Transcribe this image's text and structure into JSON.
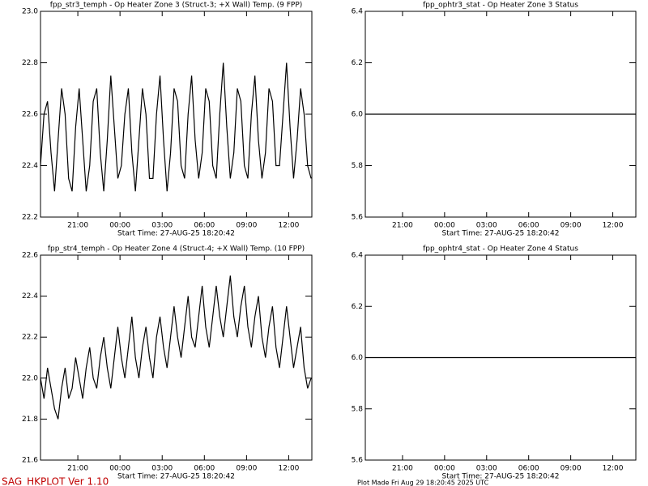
{
  "chart_data": [
    {
      "type": "line",
      "title": "fpp_str3_temph - Op Heater Zone 3 (Struct-3; +X Wall) Temp. (9 FPP)",
      "xlabel": "Start Time: 27-AUG-25  18:20:42",
      "x": [
        0,
        0.25,
        0.5,
        0.75,
        1,
        1.25,
        1.5,
        1.75,
        2,
        2.25,
        2.5,
        2.75,
        3,
        3.25,
        3.5,
        3.75,
        4,
        4.25,
        4.5,
        4.75,
        5,
        5.25,
        5.5,
        5.75,
        6,
        6.25,
        6.5,
        6.75,
        7,
        7.25,
        7.5,
        7.75,
        8,
        8.25,
        8.5,
        8.75,
        9,
        9.25,
        9.5,
        9.75,
        10,
        10.25,
        10.5,
        10.75,
        11,
        11.25,
        11.5,
        11.75,
        12,
        12.25,
        12.5,
        12.75,
        13,
        13.25,
        13.5,
        13.75,
        14,
        14.25,
        14.5,
        14.75,
        15,
        15.25,
        15.5,
        15.75,
        16,
        16.25,
        16.5,
        16.75,
        17,
        17.25,
        17.5,
        17.75,
        18,
        18.25,
        18.5,
        18.75,
        19,
        19.25
      ],
      "series": [
        {
          "color": "#000000",
          "values": [
            22.4,
            22.6,
            22.65,
            22.45,
            22.3,
            22.5,
            22.7,
            22.6,
            22.35,
            22.3,
            22.55,
            22.7,
            22.5,
            22.3,
            22.4,
            22.65,
            22.7,
            22.45,
            22.3,
            22.5,
            22.75,
            22.55,
            22.35,
            22.4,
            22.6,
            22.7,
            22.45,
            22.3,
            22.5,
            22.7,
            22.6,
            22.35,
            22.35,
            22.6,
            22.75,
            22.5,
            22.3,
            22.45,
            22.7,
            22.65,
            22.4,
            22.35,
            22.6,
            22.75,
            22.5,
            22.35,
            22.45,
            22.7,
            22.65,
            22.4,
            22.35,
            22.6,
            22.8,
            22.55,
            22.35,
            22.45,
            22.7,
            22.65,
            22.4,
            22.35,
            22.6,
            22.75,
            22.5,
            22.35,
            22.45,
            22.7,
            22.65,
            22.4,
            22.4,
            22.6,
            22.8,
            22.55,
            22.35,
            22.5,
            22.7,
            22.6,
            22.4,
            22.35
          ]
        }
      ],
      "xlim": [
        0,
        19.3
      ],
      "xticks": [
        {
          "value": 2.655,
          "label": "21:00"
        },
        {
          "value": 5.655,
          "label": "00:00"
        },
        {
          "value": 8.655,
          "label": "03:00"
        },
        {
          "value": 11.655,
          "label": "06:00"
        },
        {
          "value": 14.655,
          "label": "09:00"
        },
        {
          "value": 17.655,
          "label": "12:00"
        }
      ],
      "ylim": [
        22.2,
        23.0
      ],
      "yticks": [
        22.2,
        22.4,
        22.6,
        22.8,
        {
          "value": 23.0,
          "label": "23.0"
        }
      ],
      "grid": false
    },
    {
      "type": "line",
      "title": "fpp_ophtr3_stat - Op Heater Zone 3 Status",
      "xlabel": "Start Time: 27-AUG-25  18:20:42",
      "x": [
        0,
        19.3
      ],
      "series": [
        {
          "color": "#000000",
          "values": [
            6.0,
            6.0
          ]
        }
      ],
      "xlim": [
        0,
        19.3
      ],
      "xticks": [
        {
          "value": 2.655,
          "label": "21:00"
        },
        {
          "value": 5.655,
          "label": "00:00"
        },
        {
          "value": 8.655,
          "label": "03:00"
        },
        {
          "value": 11.655,
          "label": "06:00"
        },
        {
          "value": 14.655,
          "label": "09:00"
        },
        {
          "value": 17.655,
          "label": "12:00"
        }
      ],
      "ylim": [
        5.6,
        6.4
      ],
      "yticks": [
        5.6,
        5.8,
        {
          "value": 6.0,
          "label": "6.0"
        },
        6.2,
        6.4
      ],
      "grid": false
    },
    {
      "type": "line",
      "title": "fpp_str4_temph - Op Heater Zone 4 (Struct-4; +X Wall) Temp. (10 FPP)",
      "xlabel": "Start Time: 27-AUG-25  18:20:42",
      "x": [
        0,
        0.25,
        0.5,
        0.75,
        1,
        1.25,
        1.5,
        1.75,
        2,
        2.25,
        2.5,
        2.75,
        3,
        3.25,
        3.5,
        3.75,
        4,
        4.25,
        4.5,
        4.75,
        5,
        5.25,
        5.5,
        5.75,
        6,
        6.25,
        6.5,
        6.75,
        7,
        7.25,
        7.5,
        7.75,
        8,
        8.25,
        8.5,
        8.75,
        9,
        9.25,
        9.5,
        9.75,
        10,
        10.25,
        10.5,
        10.75,
        11,
        11.25,
        11.5,
        11.75,
        12,
        12.25,
        12.5,
        12.75,
        13,
        13.25,
        13.5,
        13.75,
        14,
        14.25,
        14.5,
        14.75,
        15,
        15.25,
        15.5,
        15.75,
        16,
        16.25,
        16.5,
        16.75,
        17,
        17.25,
        17.5,
        17.75,
        18,
        18.25,
        18.5,
        18.75,
        19,
        19.25
      ],
      "series": [
        {
          "color": "#000000",
          "values": [
            22.0,
            21.9,
            22.05,
            21.95,
            21.85,
            21.8,
            21.95,
            22.05,
            21.9,
            21.95,
            22.1,
            22.0,
            21.9,
            22.05,
            22.15,
            22.0,
            21.95,
            22.1,
            22.2,
            22.05,
            21.95,
            22.1,
            22.25,
            22.1,
            22.0,
            22.15,
            22.3,
            22.1,
            22.0,
            22.15,
            22.25,
            22.1,
            22.0,
            22.2,
            22.3,
            22.15,
            22.05,
            22.2,
            22.35,
            22.2,
            22.1,
            22.25,
            22.4,
            22.2,
            22.15,
            22.3,
            22.45,
            22.25,
            22.15,
            22.3,
            22.45,
            22.3,
            22.2,
            22.35,
            22.5,
            22.3,
            22.2,
            22.35,
            22.45,
            22.25,
            22.15,
            22.3,
            22.4,
            22.2,
            22.1,
            22.25,
            22.35,
            22.15,
            22.05,
            22.2,
            22.35,
            22.2,
            22.05,
            22.15,
            22.25,
            22.05,
            21.95,
            22.0
          ]
        }
      ],
      "xlim": [
        0,
        19.3
      ],
      "xticks": [
        {
          "value": 2.655,
          "label": "21:00"
        },
        {
          "value": 5.655,
          "label": "00:00"
        },
        {
          "value": 8.655,
          "label": "03:00"
        },
        {
          "value": 11.655,
          "label": "06:00"
        },
        {
          "value": 14.655,
          "label": "09:00"
        },
        {
          "value": 17.655,
          "label": "12:00"
        }
      ],
      "ylim": [
        21.6,
        22.6
      ],
      "yticks": [
        21.6,
        21.8,
        {
          "value": 22.0,
          "label": "22.0"
        },
        22.2,
        22.4,
        22.6
      ],
      "grid": false
    },
    {
      "type": "line",
      "title": "fpp_ophtr4_stat - Op Heater Zone 4 Status",
      "xlabel": "Start Time: 27-AUG-25  18:20:42",
      "x": [
        0,
        19.3
      ],
      "series": [
        {
          "color": "#000000",
          "values": [
            6.0,
            6.0
          ]
        }
      ],
      "xlim": [
        0,
        19.3
      ],
      "xticks": [
        {
          "value": 2.655,
          "label": "21:00"
        },
        {
          "value": 5.655,
          "label": "00:00"
        },
        {
          "value": 8.655,
          "label": "03:00"
        },
        {
          "value": 11.655,
          "label": "06:00"
        },
        {
          "value": 14.655,
          "label": "09:00"
        },
        {
          "value": 17.655,
          "label": "12:00"
        }
      ],
      "ylim": [
        5.6,
        6.4
      ],
      "yticks": [
        5.6,
        5.8,
        {
          "value": 6.0,
          "label": "6.0"
        },
        6.2,
        6.4
      ],
      "grid": false
    }
  ],
  "footer_left": "SAG_HKPLOT   Ver 1.10",
  "footer_right": "Plot Made Fri Aug 29 18:20:45 2025 UTC"
}
